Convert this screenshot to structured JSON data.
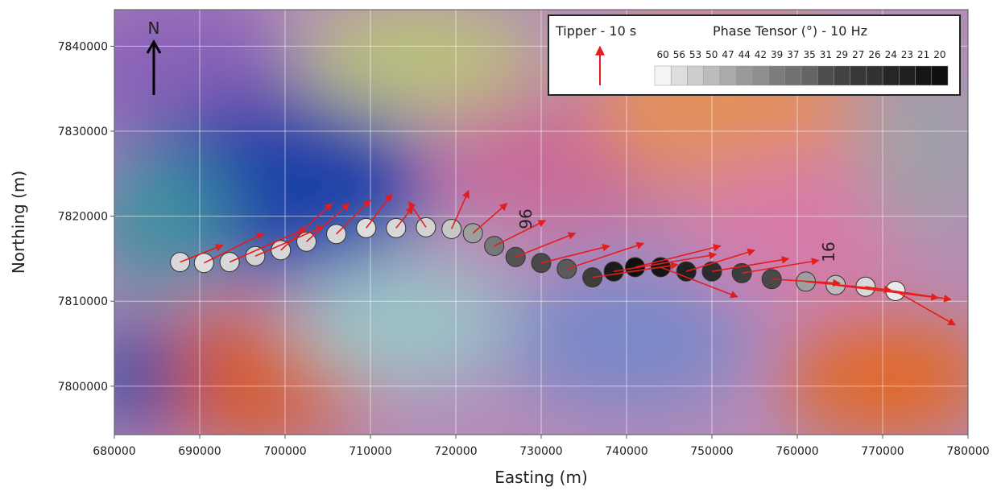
{
  "chart_data": {
    "type": "map",
    "xlabel": "Easting (m)",
    "ylabel": "Northing (m)",
    "xlim": [
      680000,
      780000
    ],
    "ylim": [
      7794300,
      7844300
    ],
    "xticks": [
      680000,
      690000,
      700000,
      710000,
      720000,
      730000,
      740000,
      750000,
      760000,
      770000,
      780000
    ],
    "yticks": [
      7800000,
      7810000,
      7820000,
      7830000,
      7840000
    ],
    "grid": true,
    "north_label": "N",
    "tipper_title": "Tipper - 10 s",
    "phase_title": "Phase Tensor (°) - 10 Hz",
    "phase_ticks": [
      60,
      56,
      53,
      50,
      47,
      44,
      42,
      39,
      37,
      35,
      31,
      29,
      27,
      26,
      24,
      23,
      21,
      20
    ],
    "arrow_color": "#e41c1c",
    "profile_labels": [
      "96",
      "16"
    ],
    "x": [
      687700,
      690500,
      693500,
      696500,
      699500,
      702500,
      706000,
      709500,
      713000,
      716500,
      719500,
      722000,
      724500,
      727000,
      730000,
      733000,
      736000,
      738500,
      741000,
      744000,
      747000,
      750000,
      753500,
      757000,
      761000,
      764500,
      768000,
      771500
    ],
    "y": [
      7814600,
      7814500,
      7814600,
      7815300,
      7816000,
      7817000,
      7817900,
      7818600,
      7818600,
      7818700,
      7818500,
      7818000,
      7816500,
      7815200,
      7814500,
      7813800,
      7812800,
      7813500,
      7814000,
      7814000,
      7813500,
      7813500,
      7813300,
      7812600,
      7812300,
      7811900,
      7811700,
      7811200
    ],
    "phase": [
      55,
      56,
      55,
      54,
      55,
      54,
      55,
      56,
      55,
      54,
      52,
      45,
      38,
      32,
      30,
      33,
      28,
      22,
      20,
      21,
      23,
      25,
      28,
      30,
      45,
      50,
      55,
      58
    ],
    "tipper_dx": [
      5000,
      7000,
      9000,
      8000,
      6000,
      5000,
      4000,
      3000,
      2000,
      -2000,
      2000,
      4000,
      6000,
      7000,
      8000,
      9000,
      10000,
      12000,
      10000,
      9000,
      8000,
      9000,
      9000,
      8000,
      10000,
      12000,
      10000,
      7000
    ],
    "tipper_dy": [
      2000,
      3500,
      4000,
      3500,
      5500,
      4500,
      4000,
      4000,
      2500,
      3000,
      4500,
      3500,
      3000,
      2800,
      2000,
      3000,
      1500,
      2000,
      2500,
      -3500,
      2500,
      1500,
      1500,
      -500,
      -1000,
      -1500,
      -1500,
      -4000
    ]
  }
}
